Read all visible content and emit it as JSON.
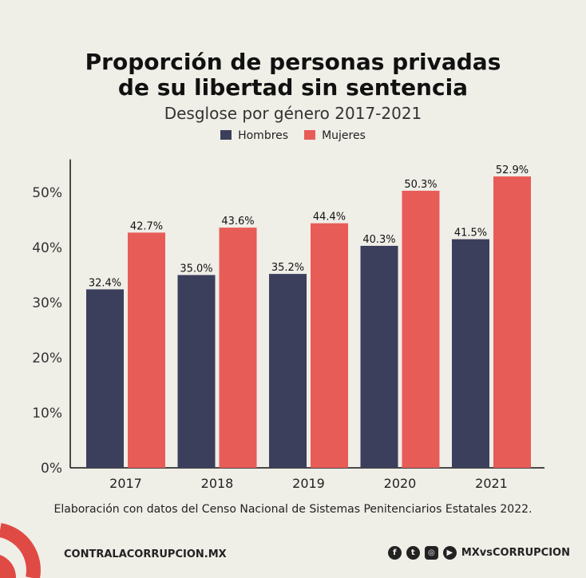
{
  "title_line1": "Proporción de personas privadas",
  "title_line2": "de su libertad sin sentencia",
  "subtitle": "Desglose por género 2017-2021",
  "chart_data": {
    "type": "bar",
    "title": "Proporción de personas privadas de su libertad sin sentencia",
    "subtitle": "Desglose por género 2017-2021",
    "categories": [
      "2017",
      "2018",
      "2019",
      "2020",
      "2021"
    ],
    "series": [
      {
        "name": "Hombres",
        "color": "#3b3f5c",
        "values": [
          32.4,
          35.0,
          35.2,
          40.3,
          41.5
        ],
        "labels": [
          "32.4%",
          "35.0%",
          "35.2%",
          "40.3%",
          "41.5%"
        ]
      },
      {
        "name": "Mujeres",
        "color": "#e85c58",
        "values": [
          42.7,
          43.6,
          44.4,
          50.3,
          52.9
        ],
        "labels": [
          "42.7%",
          "43.6%",
          "44.4%",
          "50.3%",
          "52.9%"
        ]
      }
    ],
    "yticks": [
      "0%",
      "10%",
      "20%",
      "30%",
      "40%",
      "50%"
    ],
    "ytick_values": [
      0,
      10,
      20,
      30,
      40,
      50
    ],
    "ylim": [
      0,
      56
    ],
    "legend": "top-center",
    "grid": false
  },
  "source": "Elaboración con datos del Censo Nacional de Sistemas Penitenciarios Estatales 2022.",
  "footer": {
    "site": "CONTRALACORRUPCION.MX",
    "handle": "MXvsCORRUPCION",
    "icons": [
      "facebook-icon",
      "twitter-icon",
      "instagram-icon",
      "youtube-icon"
    ]
  }
}
